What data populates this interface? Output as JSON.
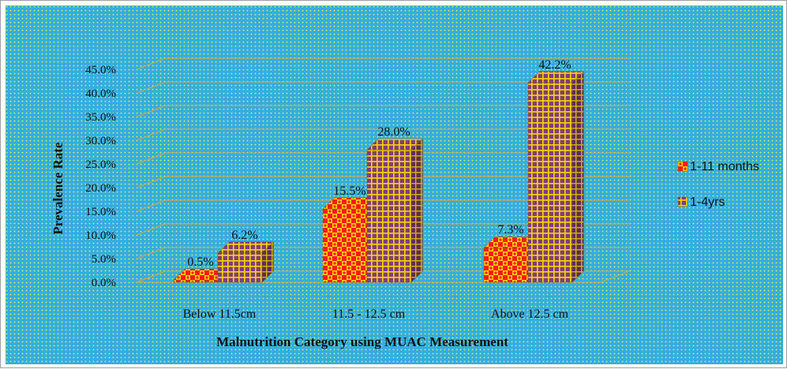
{
  "chart_data": {
    "type": "bar",
    "title": "",
    "xlabel": "Malnutrition Category using MUAC Measurement",
    "ylabel": "Prevalence Rate",
    "categories": [
      "Below 11.5cm",
      "11.5 - 12.5 cm",
      "Above 12.5 cm"
    ],
    "series": [
      {
        "name": "1-11 months",
        "values": [
          0.5,
          15.5,
          7.3
        ],
        "labels": [
          "0.5%",
          "15.5%",
          "7.3%"
        ],
        "color": "#ff1a1a",
        "pattern_color": "#ffd400"
      },
      {
        "name": "1-4yrs",
        "values": [
          6.2,
          28.0,
          42.2
        ],
        "labels": [
          "6.2%",
          "28.0%",
          "42.2%"
        ],
        "color": "#7f3f7a",
        "pattern_color": "#ffd400"
      }
    ],
    "ylim": [
      0,
      45
    ],
    "yticks": [
      0,
      5,
      10,
      15,
      20,
      25,
      30,
      35,
      40,
      45
    ],
    "ytick_labels": [
      "0.0%",
      "5.0%",
      "10.0%",
      "15.0%",
      "20.0%",
      "25.0%",
      "30.0%",
      "35.0%",
      "40.0%",
      "45.0%"
    ],
    "grid": true,
    "legend_position": "right",
    "background_color": "#34aee0",
    "gridline_color": "#d8a53a"
  }
}
